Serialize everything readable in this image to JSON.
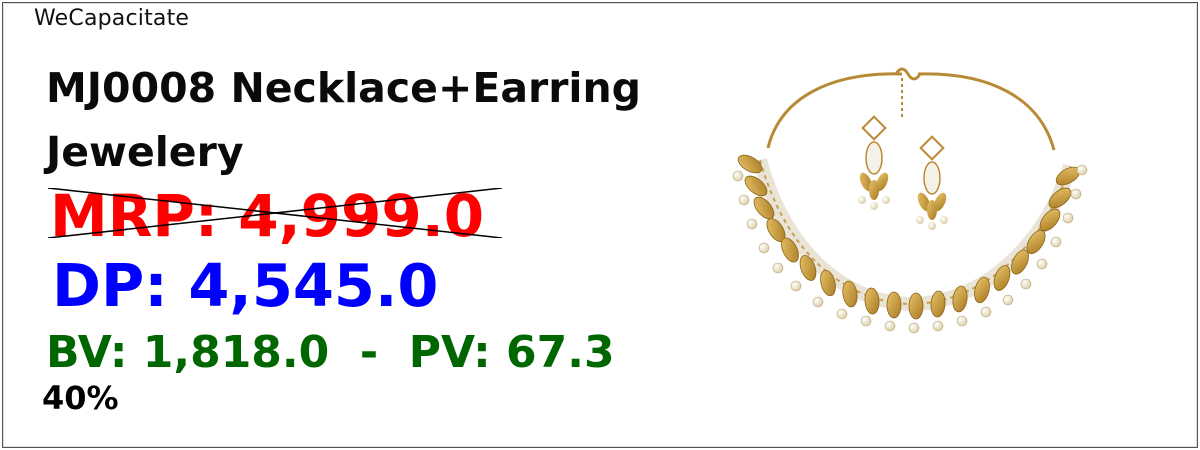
{
  "brand": "WeCapacitate",
  "product": {
    "title": "MJ0008 Necklace+Earring Jewelery",
    "mrp": "MRP: 4,999.0",
    "dp": "DP: 4,545.0",
    "bv_pv": "BV: 1,818.0  -  PV: 67.3",
    "discount": "40%"
  },
  "image": {
    "name": "gold-leaf-necklace-earring-set",
    "colors": {
      "gold": "#c99a3c",
      "pearl": "#efe6cc",
      "stone": "#f6f6f6"
    }
  }
}
